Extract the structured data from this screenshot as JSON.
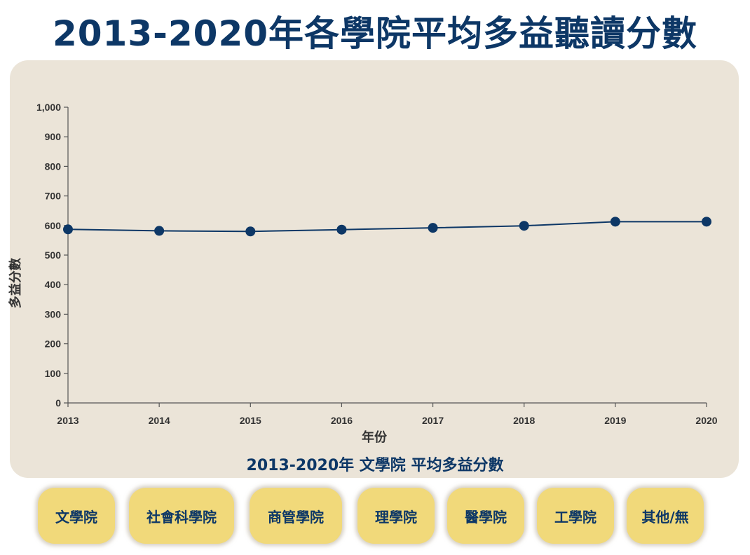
{
  "page_title": "2013-2020年各學院平均多益聽讀分數",
  "chart_data": {
    "type": "line",
    "title": "2013-2020年 文學院 平均多益分數",
    "xlabel": "年份",
    "ylabel": "多益分數",
    "x": [
      "2013",
      "2014",
      "2015",
      "2016",
      "2017",
      "2018",
      "2019",
      "2020"
    ],
    "series": [
      {
        "values": [
          587,
          582,
          580,
          586,
          592,
          599,
          613,
          613
        ]
      }
    ],
    "ylim": [
      0,
      1000
    ],
    "yticks": [
      "0",
      "100",
      "200",
      "300",
      "400",
      "500",
      "600",
      "700",
      "800",
      "900",
      "1,000"
    ],
    "grid": false,
    "line_color": "#0d3766"
  },
  "tabs": [
    {
      "label": "文學院"
    },
    {
      "label": "社會科學院"
    },
    {
      "label": "商管學院"
    },
    {
      "label": "理學院"
    },
    {
      "label": "醫學院"
    },
    {
      "label": "工學院"
    },
    {
      "label": "其他/無"
    }
  ],
  "colors": {
    "title": "#0d3766",
    "panel": "#ebe4d8",
    "tab": "#f1d97a"
  }
}
